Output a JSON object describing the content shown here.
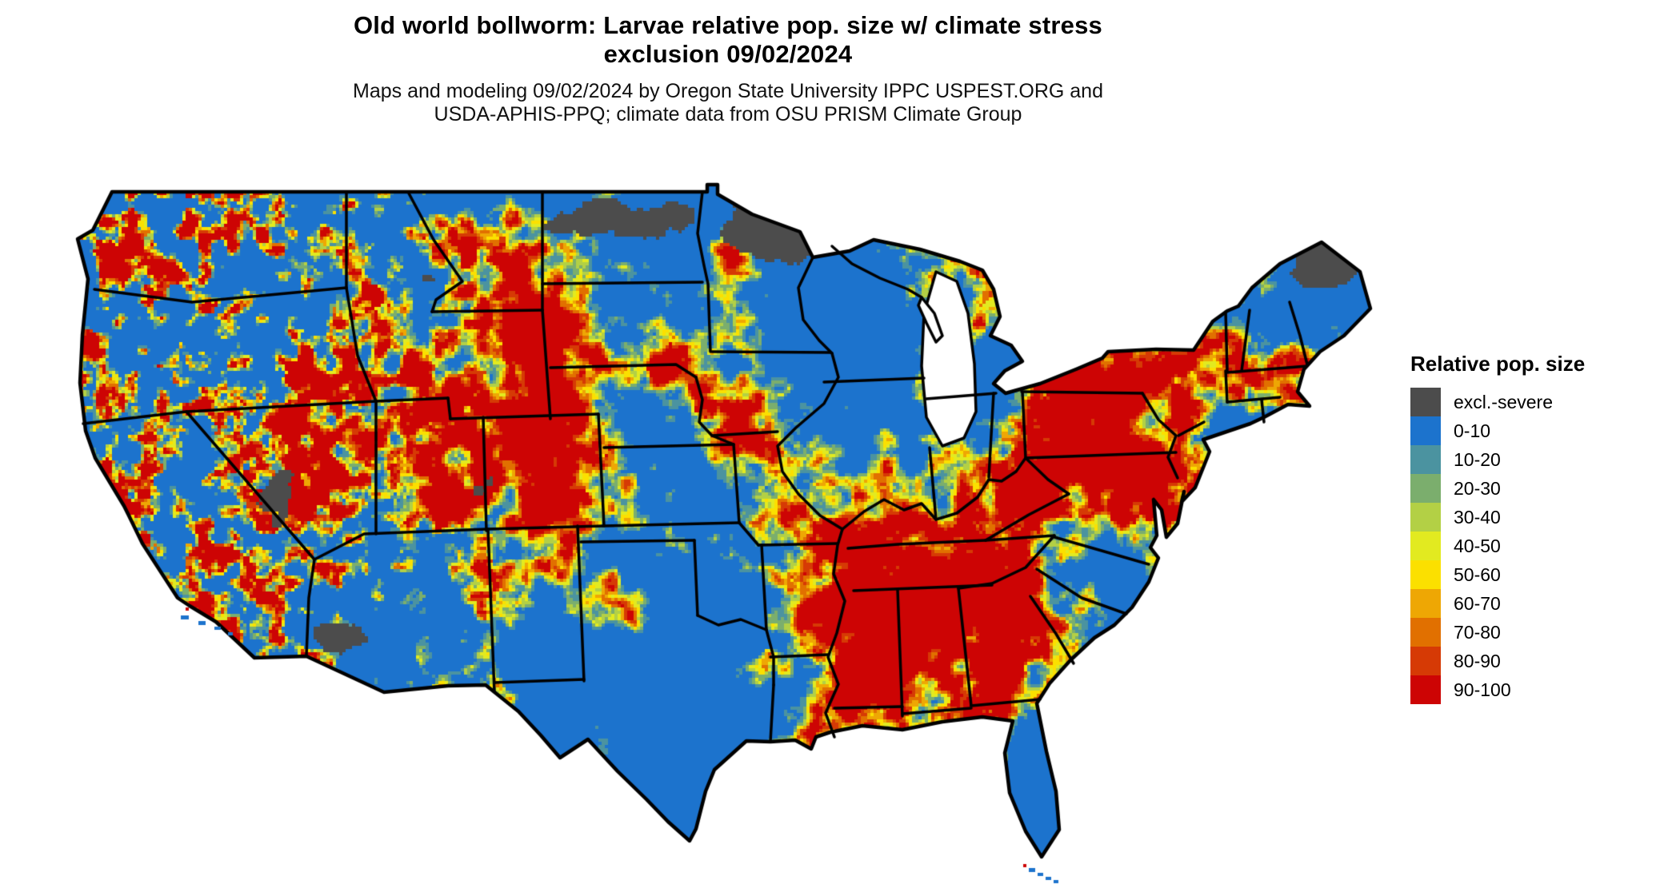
{
  "header": {
    "title_line1": "Old world bollworm: Larvae relative pop. size w/ climate stress",
    "title_line2": "exclusion 09/02/2024",
    "subtitle_line1": "Maps and modeling 09/02/2024 by Oregon State University IPPC USPEST.ORG and",
    "subtitle_line2": "USDA-APHIS-PPQ; climate data from OSU PRISM Climate Group"
  },
  "legend": {
    "title": "Relative pop. size",
    "items": [
      {
        "label": "excl.-severe",
        "color": "#4c4c4c"
      },
      {
        "label": "0-10",
        "color": "#1c73cd"
      },
      {
        "label": "10-20",
        "color": "#4b93a0"
      },
      {
        "label": "20-30",
        "color": "#7bae6d"
      },
      {
        "label": "30-40",
        "color": "#b3d045"
      },
      {
        "label": "40-50",
        "color": "#e2ea20"
      },
      {
        "label": "50-60",
        "color": "#fbe000"
      },
      {
        "label": "60-70",
        "color": "#eea704"
      },
      {
        "label": "70-80",
        "color": "#e17000"
      },
      {
        "label": "80-90",
        "color": "#d63a05"
      },
      {
        "label": "90-100",
        "color": "#cd0404"
      }
    ]
  },
  "map": {
    "region": "Contiguous United States",
    "boundary_color": "#000000",
    "water_color": "#ffffff"
  }
}
